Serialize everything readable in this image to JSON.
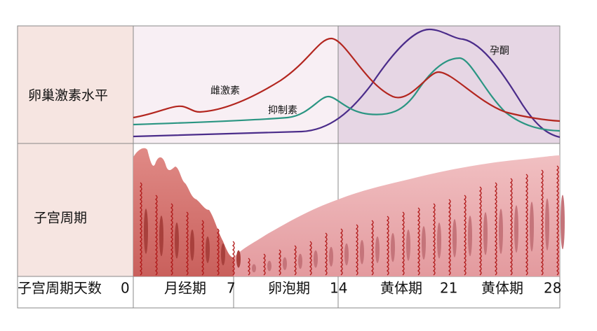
{
  "rows": {
    "hormones": "卵巢激素水平",
    "uterus": "子宫周期",
    "days": "子宫周期天数"
  },
  "curves": {
    "estrogen": "雌激素",
    "inhibin": "抑制素",
    "progesterone": "孕酮"
  },
  "phases": [
    "月经期",
    "卵泡期",
    "黄体期",
    "黄体期"
  ],
  "days": [
    "0",
    "7",
    "14",
    "21",
    "28"
  ]
}
